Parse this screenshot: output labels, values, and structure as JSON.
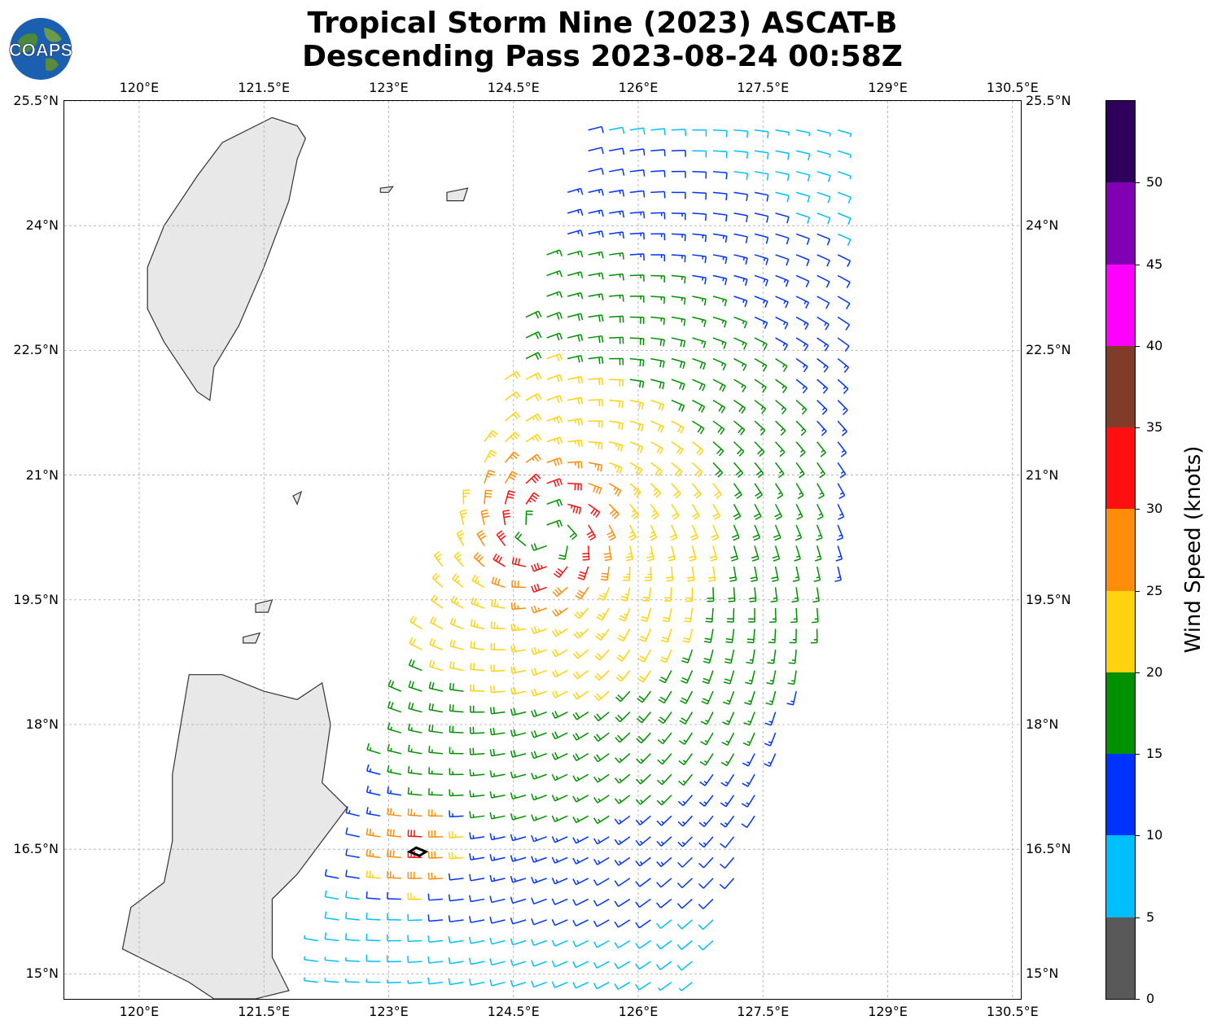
{
  "title": {
    "line1": "Tropical Storm Nine (2023) ASCAT-B",
    "line2": "Descending Pass 2023-08-24 00:58Z"
  },
  "logo": {
    "text": "COAPS",
    "icon": "globe-logo-icon"
  },
  "map": {
    "lon_range": [
      119.1,
      130.6
    ],
    "lat_range": [
      14.7,
      25.5
    ],
    "lon_ticks": [
      "120°E",
      "121.5°E",
      "123°E",
      "124.5°E",
      "126°E",
      "127.5°E",
      "129°E",
      "130.5°E"
    ],
    "lat_ticks": [
      "25.5°N",
      "24°N",
      "22.5°N",
      "21°N",
      "19.5°N",
      "18°N",
      "16.5°N",
      "15°N"
    ],
    "grid": true,
    "land_color": "#e8e8e8",
    "coast_color": "#333333",
    "storm_center": {
      "lon": 124.9,
      "lat": 20.3
    },
    "low_center_marker": {
      "lon": 123.35,
      "lat": 16.47
    }
  },
  "colorbar": {
    "label": "Wind Speed (knots)",
    "ticks": [
      "0",
      "5",
      "10",
      "15",
      "20",
      "25",
      "30",
      "35",
      "40",
      "45",
      "50"
    ],
    "bounds": [
      0,
      55
    ],
    "colors": [
      "#595959",
      "#00bfff",
      "#0033ff",
      "#009100",
      "#ffd20f",
      "#ff8c0a",
      "#ff0f0f",
      "#803c28",
      "#ff00ff",
      "#8000b4",
      "#2e005c"
    ]
  }
}
